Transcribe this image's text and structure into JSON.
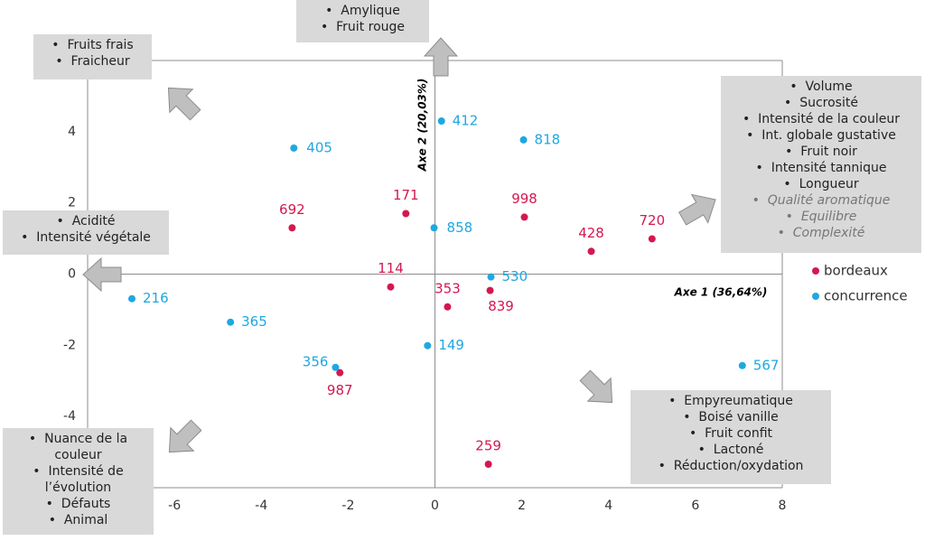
{
  "chart_data": {
    "type": "scatter",
    "x_label": "Axe 1 (36,64%)",
    "y_label": "Axe 2 (20,03%)",
    "xlim": [
      -8,
      8
    ],
    "ylim": [
      -6,
      6
    ],
    "xticks": [
      -6,
      -4,
      -2,
      0,
      2,
      4,
      6,
      8
    ],
    "yticks": [
      -4,
      -2,
      0,
      2,
      4
    ],
    "series": [
      {
        "name": "bordeaux",
        "color": "#d4184f",
        "labels": [
          "692",
          "171",
          "998",
          "428",
          "720",
          "114",
          "353",
          "839",
          "987",
          "259"
        ],
        "x": [
          -3.29,
          -0.67,
          2.06,
          3.6,
          5.0,
          -1.02,
          0.29,
          1.27,
          -2.19,
          1.23
        ],
        "y": [
          1.3,
          1.7,
          1.6,
          0.64,
          0.99,
          -0.36,
          -0.92,
          -0.46,
          -2.77,
          -5.34
        ]
      },
      {
        "name": "concurrence",
        "color": "#1ea8e1",
        "labels": [
          "412",
          "818",
          "405",
          "858",
          "530",
          "216",
          "365",
          "149",
          "356",
          "567"
        ],
        "x": [
          0.15,
          2.04,
          -3.25,
          -0.02,
          1.29,
          -6.98,
          -4.71,
          -0.17,
          -2.29,
          7.08
        ],
        "y": [
          4.3,
          3.77,
          3.54,
          1.3,
          -0.08,
          -0.69,
          -1.35,
          -2.01,
          -2.62,
          -2.57
        ]
      }
    ]
  },
  "annotations": [
    {
      "items": [
        "Fruits frais",
        "Fraicheur"
      ]
    },
    {
      "items": [
        "Amylique",
        "Fruit rouge"
      ]
    },
    {
      "items": [
        "Volume",
        "Sucrosité",
        "Intensité de la couleur",
        "Int. globale gustative",
        "Fruit noir",
        "Intensité tannique",
        "Longueur",
        "Qualité aromatique",
        "Equilibre",
        "Complexité"
      ]
    },
    {
      "items": [
        "Acidité",
        "Intensité végétale"
      ]
    },
    {
      "items": [
        "Nuance de la couleur",
        "Intensité de l’évolution",
        "Défauts",
        "Animal"
      ]
    },
    {
      "items": [
        "Empyreumatique",
        "Boisé vanille",
        "Fruit confit",
        "Lactoné",
        "Réduction/oxydation"
      ]
    }
  ]
}
